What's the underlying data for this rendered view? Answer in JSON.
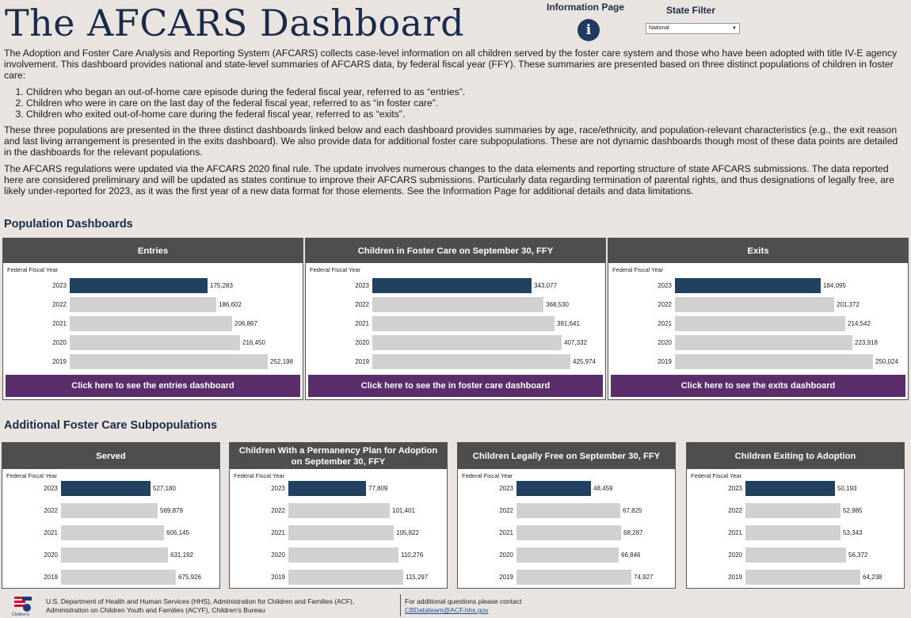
{
  "header": {
    "title": "The AFCARS Dashboard",
    "info_label": "Information Page",
    "info_icon": "info-icon",
    "filter_label": "State Filter",
    "filter_value": "National"
  },
  "intro": {
    "p1": "The Adoption and Foster Care Analysis and Reporting System (AFCARS) collects case-level information on all children served by the foster care system and those who have been adopted with title IV-E agency involvement. This dashboard provides national and state-level summaries of AFCARS data, by federal fiscal year (FFY). These summaries are presented based on three distinct populations of children in foster care:",
    "list": [
      "Children who began an out-of-home care episode during the federal fiscal year, referred to as “entries”.",
      "Children who were in care on the last day of the federal fiscal year, referred to as “in foster care”.",
      "Children who exited out-of-home care during the federal fiscal year, referred to as “exits”."
    ],
    "p2": "These three populations are presented in the three distinct dashboards linked below and each dashboard provides summaries by age, race/ethnicity, and population-relevant characteristics (e.g., the exit reason and last living arrangement is presented in the exits dashboard). We also provide data for additional foster care subpopulations. These are not dynamic dashboards though most of these data points are detailed in the dashboards for the relevant populations.",
    "p3": "The AFCARS regulations were updated via the AFCARS 2020 final rule. The update involves numerous changes to the data elements and reporting structure of state AFCARS submissions. The data reported here are considered preliminary and will be updated as states continue to improve their AFCARS submissions. Particularly data regarding termination of parental rights, and thus designations of legally free, are likely under-reported for 2023, as it was the first year of a new data format for those elements. See the Information Page for additional details and data limitations."
  },
  "sections": {
    "population": "Population Dashboards",
    "additional": "Additional Foster Care Subpopulations"
  },
  "colors": {
    "current_bar": "#22405f",
    "past_bar": "#d1d1d1",
    "button": "#5b2d6b",
    "header": "#4e4e4e"
  },
  "axis_label": "Federal Fiscal Year",
  "years": [
    "2023",
    "2022",
    "2021",
    "2020",
    "2019"
  ],
  "population_cards": [
    {
      "title": "Entries",
      "values": [
        175283,
        186602,
        206867,
        216450,
        252198
      ],
      "labels": [
        "175,283",
        "186,602",
        "206,867",
        "216,450",
        "252,198"
      ],
      "button": "Click here to see the entries dashboard"
    },
    {
      "title": "Children in Foster Care on September 30, FFY",
      "values": [
        343077,
        368530,
        391641,
        407332,
        425974
      ],
      "labels": [
        "343,077",
        "368,530",
        "391,641",
        "407,332",
        "425,974"
      ],
      "button": "Click here to see the in foster care dashboard"
    },
    {
      "title": "Exits",
      "values": [
        184095,
        201372,
        214542,
        223918,
        250024
      ],
      "labels": [
        "184,095",
        "201,372",
        "214,542",
        "223,918",
        "250,024"
      ],
      "button": "Click here to see the exits dashboard"
    }
  ],
  "sub_cards": [
    {
      "title": "Served",
      "values": [
        527180,
        569879,
        606145,
        631192,
        675926
      ],
      "labels": [
        "527,180",
        "569,879",
        "606,145",
        "631,192",
        "675,926"
      ]
    },
    {
      "title": "Children With a Permanency Plan for Adoption on September 30, FFY",
      "values": [
        77809,
        101401,
        105822,
        110276,
        115297
      ],
      "labels": [
        "77,809",
        "101,401",
        "105,822",
        "110,276",
        "115,297"
      ]
    },
    {
      "title": "Children Legally Free on September 30, FFY",
      "values": [
        48459,
        67825,
        68287,
        66846,
        74927
      ],
      "labels": [
        "48,459",
        "67,825",
        "68,287",
        "66,846",
        "74,927"
      ]
    },
    {
      "title": "Children Exiting to Adoption",
      "values": [
        50193,
        52985,
        53343,
        56372,
        64238
      ],
      "labels": [
        "50,193",
        "52,985",
        "53,343",
        "56,372",
        "64,238"
      ]
    }
  ],
  "chart_data": [
    {
      "type": "bar",
      "title": "Entries",
      "ylabel": "Federal Fiscal Year",
      "categories": [
        "2023",
        "2022",
        "2021",
        "2020",
        "2019"
      ],
      "values": [
        175283,
        186602,
        206867,
        216450,
        252198
      ]
    },
    {
      "type": "bar",
      "title": "Children in Foster Care on September 30, FFY",
      "ylabel": "Federal Fiscal Year",
      "categories": [
        "2023",
        "2022",
        "2021",
        "2020",
        "2019"
      ],
      "values": [
        343077,
        368530,
        391641,
        407332,
        425974
      ]
    },
    {
      "type": "bar",
      "title": "Exits",
      "ylabel": "Federal Fiscal Year",
      "categories": [
        "2023",
        "2022",
        "2021",
        "2020",
        "2019"
      ],
      "values": [
        184095,
        201372,
        214542,
        223918,
        250024
      ]
    },
    {
      "type": "bar",
      "title": "Served",
      "ylabel": "Federal Fiscal Year",
      "categories": [
        "2023",
        "2022",
        "2021",
        "2020",
        "2019"
      ],
      "values": [
        527180,
        569879,
        606145,
        631192,
        675926
      ]
    },
    {
      "type": "bar",
      "title": "Children With a Permanency Plan for Adoption on September 30, FFY",
      "ylabel": "Federal Fiscal Year",
      "categories": [
        "2023",
        "2022",
        "2021",
        "2020",
        "2019"
      ],
      "values": [
        77809,
        101401,
        105822,
        110276,
        115297
      ]
    },
    {
      "type": "bar",
      "title": "Children Legally Free on September 30, FFY",
      "ylabel": "Federal Fiscal Year",
      "categories": [
        "2023",
        "2022",
        "2021",
        "2020",
        "2019"
      ],
      "values": [
        48459,
        67825,
        68287,
        66846,
        74927
      ]
    },
    {
      "type": "bar",
      "title": "Children Exiting to Adoption",
      "ylabel": "Federal Fiscal Year",
      "categories": [
        "2023",
        "2022",
        "2021",
        "2020",
        "2019"
      ],
      "values": [
        50193,
        52985,
        53343,
        56372,
        64238
      ]
    }
  ],
  "footer": {
    "left": "U.S. Department of Health and Human Services (HHS), Administration for Children and Families (ACF), Administration on Children Youth and Families (ACYF), Children’s Bureau",
    "right_line": "For additional questions please contact",
    "email": "CBDatateam@ACF.hhs.gov",
    "logo_text": "Children's Bureau"
  }
}
